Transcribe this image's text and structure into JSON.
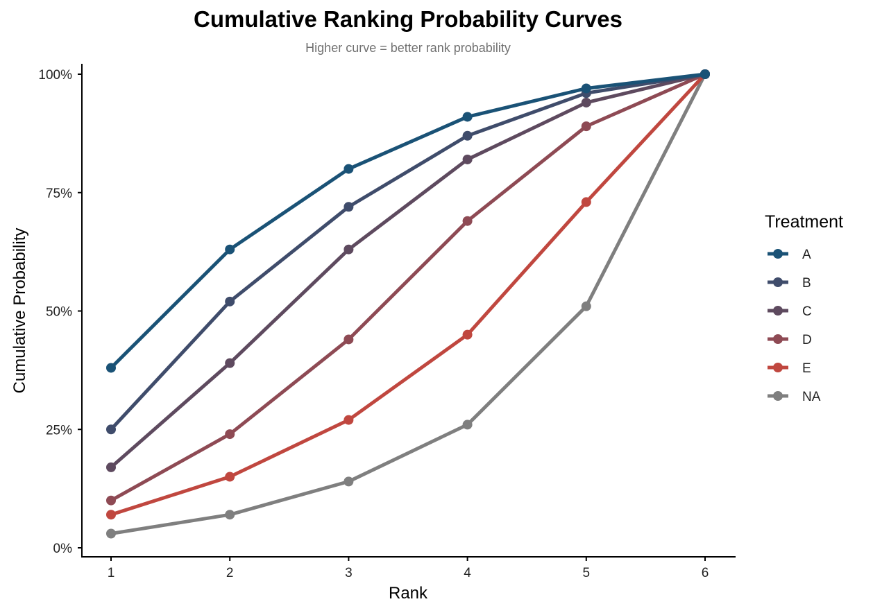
{
  "chart_data": {
    "type": "line",
    "title": "Cumulative Ranking Probability Curves",
    "subtitle": "Higher curve = better rank probability",
    "xlabel": "Rank",
    "ylabel": "Cumulative Probability",
    "x": [
      1,
      2,
      3,
      4,
      5,
      6
    ],
    "xticks": [
      "1",
      "2",
      "3",
      "4",
      "5",
      "6"
    ],
    "ylim": [
      0,
      1
    ],
    "yticks": [
      0,
      0.25,
      0.5,
      0.75,
      1.0
    ],
    "ytick_labels": [
      "0%",
      "25%",
      "50%",
      "75%",
      "100%"
    ],
    "grid": false,
    "legend": {
      "title": "Treatment",
      "position": "right"
    },
    "series": [
      {
        "name": "A",
        "color": "#1a5276",
        "values": [
          0.38,
          0.63,
          0.8,
          0.91,
          0.97,
          1.0
        ]
      },
      {
        "name": "B",
        "color": "#3f4c6b",
        "values": [
          0.25,
          0.52,
          0.72,
          0.87,
          0.96,
          1.0
        ]
      },
      {
        "name": "C",
        "color": "#5e4a5f",
        "values": [
          0.17,
          0.39,
          0.63,
          0.82,
          0.94,
          1.0
        ]
      },
      {
        "name": "D",
        "color": "#8e4a54",
        "values": [
          0.1,
          0.24,
          0.44,
          0.69,
          0.89,
          1.0
        ]
      },
      {
        "name": "E",
        "color": "#c0473f",
        "values": [
          0.07,
          0.15,
          0.27,
          0.45,
          0.73,
          1.0
        ]
      },
      {
        "name": "NA",
        "color": "#7f7f7f",
        "values": [
          0.03,
          0.07,
          0.14,
          0.26,
          0.51,
          1.0
        ]
      }
    ]
  }
}
